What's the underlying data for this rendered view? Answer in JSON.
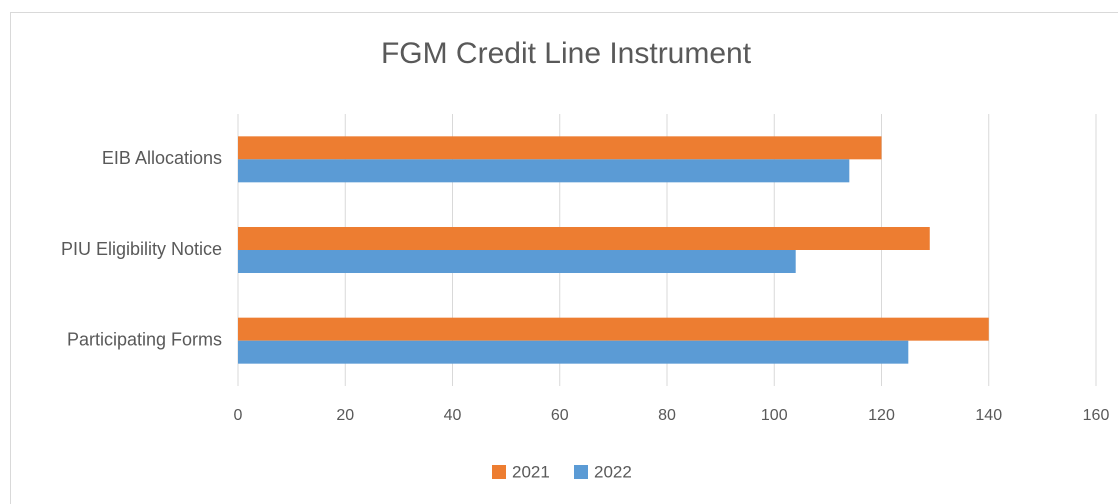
{
  "chart_data": {
    "type": "hbar",
    "title": "FGM Credit Line Instrument",
    "categories": [
      "EIB Allocations",
      "PIU Eligibility Notice",
      "Participating Forms"
    ],
    "series": [
      {
        "name": "2021",
        "color": "#ed7d31",
        "values": [
          120,
          129,
          140
        ]
      },
      {
        "name": "2022",
        "color": "#5b9bd5",
        "values": [
          114,
          104,
          125
        ]
      }
    ],
    "xlim": [
      0,
      160
    ],
    "xticks": [
      0,
      20,
      40,
      60,
      80,
      100,
      120,
      140,
      160
    ],
    "grid": true,
    "legend": "bottom"
  }
}
